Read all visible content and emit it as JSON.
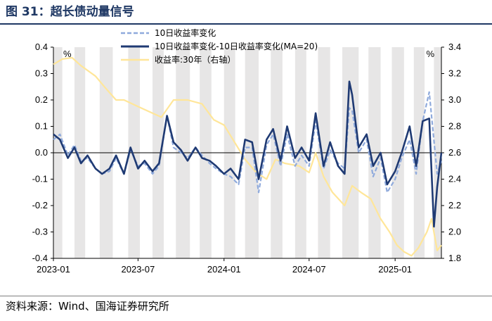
{
  "header": {
    "title": "图 31：超长债动量信号"
  },
  "footer": {
    "source": "资料来源：Wind、国海证券研究所"
  },
  "chart_data": {
    "type": "line",
    "left_unit": "%",
    "right_unit": "%",
    "left_ylim": [
      -0.4,
      0.4
    ],
    "left_yticks": [
      "0.4",
      "0.3",
      "0.2",
      "0.1",
      "0.0",
      "-0.1",
      "-0.2",
      "-0.3",
      "-0.4"
    ],
    "right_ylim": [
      1.8,
      3.4
    ],
    "right_yticks": [
      "3.4",
      "3.2",
      "3.0",
      "2.8",
      "2.6",
      "2.4",
      "2.2",
      "2.0",
      "1.8"
    ],
    "xlim": [
      "2023-01-01",
      "2025-04-10"
    ],
    "xticks": [
      "2023-01",
      "2023-07",
      "2024-01",
      "2024-07",
      "2025-01"
    ],
    "legend_position": "top-center",
    "shaded_periods": [
      [
        "2023-01-01",
        "2023-01-20"
      ],
      [
        "2023-02-15",
        "2023-03-10"
      ],
      [
        "2023-04-10",
        "2023-05-08"
      ],
      [
        "2023-06-10",
        "2023-07-05"
      ],
      [
        "2023-08-01",
        "2023-08-25"
      ],
      [
        "2023-09-20",
        "2023-10-20"
      ],
      [
        "2023-11-10",
        "2023-12-05"
      ],
      [
        "2024-01-01",
        "2024-01-25"
      ],
      [
        "2024-02-15",
        "2024-03-15"
      ],
      [
        "2024-04-10",
        "2024-05-05"
      ],
      [
        "2024-06-01",
        "2024-06-25"
      ],
      [
        "2024-07-20",
        "2024-08-15"
      ],
      [
        "2024-09-10",
        "2024-10-15"
      ],
      [
        "2024-11-05",
        "2024-12-01"
      ],
      [
        "2024-12-25",
        "2025-01-20"
      ],
      [
        "2025-02-10",
        "2025-03-05"
      ],
      [
        "2025-03-25",
        "2025-04-10"
      ]
    ],
    "series": [
      {
        "name": "10日收益率变化",
        "axis": "left",
        "color": "#8faadc",
        "style": "dashed",
        "points": [
          [
            "2023-01-01",
            0.05
          ],
          [
            "2023-01-15",
            0.07
          ],
          [
            "2023-02-01",
            -0.01
          ],
          [
            "2023-02-15",
            0.03
          ],
          [
            "2023-03-01",
            -0.03
          ],
          [
            "2023-03-15",
            -0.02
          ],
          [
            "2023-04-01",
            -0.06
          ],
          [
            "2023-04-15",
            -0.08
          ],
          [
            "2023-05-01",
            -0.07
          ],
          [
            "2023-05-15",
            -0.02
          ],
          [
            "2023-06-01",
            -0.08
          ],
          [
            "2023-06-15",
            0.01
          ],
          [
            "2023-07-01",
            -0.05
          ],
          [
            "2023-07-15",
            -0.04
          ],
          [
            "2023-08-01",
            -0.08
          ],
          [
            "2023-08-15",
            -0.05
          ],
          [
            "2023-09-01",
            0.14
          ],
          [
            "2023-09-15",
            0.02
          ],
          [
            "2023-10-01",
            0.0
          ],
          [
            "2023-10-15",
            -0.02
          ],
          [
            "2023-11-01",
            0.02
          ],
          [
            "2023-11-15",
            -0.01
          ],
          [
            "2023-12-01",
            -0.04
          ],
          [
            "2023-12-15",
            -0.06
          ],
          [
            "2024-01-01",
            -0.08
          ],
          [
            "2024-01-15",
            -0.09
          ],
          [
            "2024-02-01",
            -0.12
          ],
          [
            "2024-02-15",
            0.02
          ],
          [
            "2024-03-01",
            0.02
          ],
          [
            "2024-03-15",
            -0.15
          ],
          [
            "2024-04-01",
            0.03
          ],
          [
            "2024-04-15",
            0.07
          ],
          [
            "2024-05-01",
            -0.05
          ],
          [
            "2024-05-15",
            0.07
          ],
          [
            "2024-06-01",
            -0.05
          ],
          [
            "2024-06-15",
            -0.01
          ],
          [
            "2024-07-01",
            -0.05
          ],
          [
            "2024-07-15",
            0.12
          ],
          [
            "2024-08-01",
            -0.06
          ],
          [
            "2024-08-15",
            0.01
          ],
          [
            "2024-09-01",
            -0.04
          ],
          [
            "2024-09-15",
            -0.06
          ],
          [
            "2024-09-25",
            0.17
          ],
          [
            "2024-10-01",
            0.16
          ],
          [
            "2024-10-15",
            0.0
          ],
          [
            "2024-11-01",
            0.05
          ],
          [
            "2024-11-15",
            -0.09
          ],
          [
            "2024-12-01",
            -0.02
          ],
          [
            "2024-12-15",
            -0.15
          ],
          [
            "2025-01-01",
            -0.1
          ],
          [
            "2025-01-15",
            -0.02
          ],
          [
            "2025-02-01",
            0.05
          ],
          [
            "2025-02-15",
            -0.08
          ],
          [
            "2025-03-01",
            0.12
          ],
          [
            "2025-03-15",
            0.23
          ],
          [
            "2025-04-01",
            -0.08
          ],
          [
            "2025-04-10",
            -0.03
          ]
        ]
      },
      {
        "name": "10日收益率变化-10日收益率变化(MA=20)",
        "axis": "left",
        "color": "#1f3a73",
        "style": "solid",
        "points": [
          [
            "2023-01-01",
            0.07
          ],
          [
            "2023-01-15",
            0.05
          ],
          [
            "2023-02-01",
            -0.02
          ],
          [
            "2023-02-15",
            0.02
          ],
          [
            "2023-03-01",
            -0.04
          ],
          [
            "2023-03-15",
            -0.01
          ],
          [
            "2023-04-01",
            -0.06
          ],
          [
            "2023-04-15",
            -0.08
          ],
          [
            "2023-05-01",
            -0.06
          ],
          [
            "2023-05-15",
            -0.01
          ],
          [
            "2023-06-01",
            -0.08
          ],
          [
            "2023-06-15",
            0.02
          ],
          [
            "2023-07-01",
            -0.06
          ],
          [
            "2023-07-15",
            -0.03
          ],
          [
            "2023-08-01",
            -0.07
          ],
          [
            "2023-08-15",
            -0.04
          ],
          [
            "2023-09-01",
            0.14
          ],
          [
            "2023-09-15",
            0.04
          ],
          [
            "2023-10-01",
            0.01
          ],
          [
            "2023-10-15",
            -0.03
          ],
          [
            "2023-11-01",
            0.02
          ],
          [
            "2023-11-15",
            -0.02
          ],
          [
            "2023-12-01",
            -0.03
          ],
          [
            "2023-12-15",
            -0.05
          ],
          [
            "2024-01-01",
            -0.08
          ],
          [
            "2024-01-15",
            -0.06
          ],
          [
            "2024-02-01",
            -0.1
          ],
          [
            "2024-02-15",
            0.05
          ],
          [
            "2024-03-01",
            0.04
          ],
          [
            "2024-03-15",
            -0.1
          ],
          [
            "2024-04-01",
            0.05
          ],
          [
            "2024-04-15",
            0.09
          ],
          [
            "2024-05-01",
            -0.03
          ],
          [
            "2024-05-15",
            0.1
          ],
          [
            "2024-06-01",
            -0.02
          ],
          [
            "2024-06-15",
            0.02
          ],
          [
            "2024-07-01",
            -0.03
          ],
          [
            "2024-07-15",
            0.15
          ],
          [
            "2024-08-01",
            -0.05
          ],
          [
            "2024-08-15",
            0.04
          ],
          [
            "2024-09-01",
            -0.05
          ],
          [
            "2024-09-15",
            -0.08
          ],
          [
            "2024-09-25",
            0.27
          ],
          [
            "2024-10-01",
            0.22
          ],
          [
            "2024-10-15",
            0.02
          ],
          [
            "2024-11-01",
            0.07
          ],
          [
            "2024-11-15",
            -0.05
          ],
          [
            "2024-12-01",
            0.0
          ],
          [
            "2024-12-15",
            -0.12
          ],
          [
            "2025-01-01",
            -0.07
          ],
          [
            "2025-01-15",
            0.0
          ],
          [
            "2025-02-01",
            0.1
          ],
          [
            "2025-02-15",
            -0.05
          ],
          [
            "2025-03-01",
            0.12
          ],
          [
            "2025-03-15",
            0.13
          ],
          [
            "2025-03-25",
            -0.28
          ],
          [
            "2025-04-01",
            -0.13
          ],
          [
            "2025-04-10",
            0.0
          ]
        ]
      },
      {
        "name": "收益率:30年（右轴）",
        "axis": "right",
        "color": "#ffe699",
        "style": "solid",
        "points": [
          [
            "2023-01-01",
            3.27
          ],
          [
            "2023-01-20",
            3.31
          ],
          [
            "2023-02-10",
            3.32
          ],
          [
            "2023-03-01",
            3.26
          ],
          [
            "2023-04-01",
            3.18
          ],
          [
            "2023-04-20",
            3.1
          ],
          [
            "2023-05-15",
            3.0
          ],
          [
            "2023-06-01",
            3.0
          ],
          [
            "2023-07-01",
            2.95
          ],
          [
            "2023-08-01",
            2.9
          ],
          [
            "2023-08-20",
            2.87
          ],
          [
            "2023-09-15",
            3.0
          ],
          [
            "2023-10-15",
            3.0
          ],
          [
            "2023-11-15",
            2.97
          ],
          [
            "2023-12-10",
            2.85
          ],
          [
            "2024-01-01",
            2.81
          ],
          [
            "2024-01-20",
            2.7
          ],
          [
            "2024-02-15",
            2.55
          ],
          [
            "2024-03-10",
            2.45
          ],
          [
            "2024-04-01",
            2.4
          ],
          [
            "2024-04-20",
            2.55
          ],
          [
            "2024-05-10",
            2.52
          ],
          [
            "2024-06-10",
            2.5
          ],
          [
            "2024-07-01",
            2.45
          ],
          [
            "2024-07-15",
            2.6
          ],
          [
            "2024-08-01",
            2.42
          ],
          [
            "2024-08-20",
            2.3
          ],
          [
            "2024-09-15",
            2.2
          ],
          [
            "2024-10-01",
            2.35
          ],
          [
            "2024-10-20",
            2.3
          ],
          [
            "2024-11-10",
            2.25
          ],
          [
            "2024-12-01",
            2.1
          ],
          [
            "2024-12-20",
            2.0
          ],
          [
            "2025-01-05",
            1.9
          ],
          [
            "2025-01-20",
            1.85
          ],
          [
            "2025-02-05",
            1.82
          ],
          [
            "2025-02-20",
            1.88
          ],
          [
            "2025-03-10",
            2.0
          ],
          [
            "2025-03-20",
            2.1
          ],
          [
            "2025-04-01",
            1.86
          ],
          [
            "2025-04-10",
            1.9
          ]
        ]
      }
    ]
  }
}
